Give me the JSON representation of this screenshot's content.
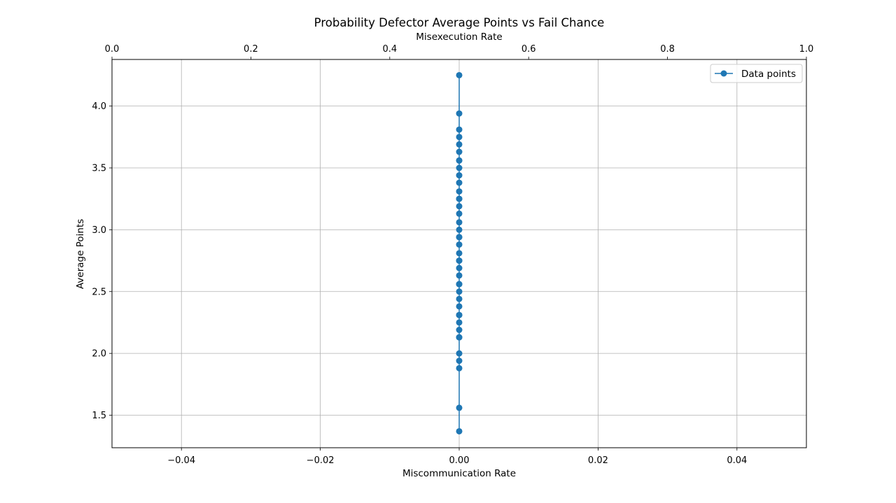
{
  "chart_data": {
    "type": "line",
    "title": "Probability Defector Average Points vs Fail Chance",
    "xlabel": "Miscommunication Rate",
    "ylabel": "Average Points",
    "x2label": "Misexecution Rate",
    "xlim": [
      -0.05,
      0.05
    ],
    "ylim": [
      1.237,
      4.377
    ],
    "x2lim": [
      0.0,
      1.0
    ],
    "xticks": [
      -0.04,
      -0.02,
      0.0,
      0.02,
      0.04
    ],
    "xtick_labels": [
      "−0.04",
      "−0.02",
      "0.00",
      "0.02",
      "0.04"
    ],
    "x2ticks": [
      0.0,
      0.2,
      0.4,
      0.6,
      0.8,
      1.0
    ],
    "x2tick_labels": [
      "0.0",
      "0.2",
      "0.4",
      "0.6",
      "0.8",
      "1.0"
    ],
    "yticks": [
      1.5,
      2.0,
      2.5,
      3.0,
      3.5,
      4.0
    ],
    "ytick_labels": [
      "1.5",
      "2.0",
      "2.5",
      "3.0",
      "3.5",
      "4.0"
    ],
    "grid": true,
    "legend_position": "top-right",
    "series": [
      {
        "name": "Data points",
        "color": "#1f77b4",
        "marker": "circle",
        "x": [
          0,
          0,
          0,
          0,
          0,
          0,
          0,
          0,
          0,
          0,
          0,
          0,
          0,
          0,
          0,
          0,
          0,
          0,
          0,
          0,
          0,
          0,
          0,
          0,
          0,
          0,
          0,
          0,
          0,
          0,
          0,
          0,
          0,
          0,
          0,
          0,
          0,
          0,
          0,
          0,
          0,
          0
        ],
        "y": [
          4.25,
          3.94,
          3.81,
          3.75,
          3.69,
          3.63,
          3.56,
          3.5,
          3.44,
          3.38,
          3.31,
          3.25,
          3.19,
          3.13,
          3.06,
          3.0,
          2.94,
          2.88,
          2.81,
          2.75,
          2.69,
          2.63,
          2.56,
          2.5,
          2.44,
          2.38,
          2.31,
          2.25,
          2.19,
          2.13,
          2.0,
          1.94,
          1.88,
          1.56,
          1.37,
          3.56,
          3.25,
          2.94,
          2.75,
          2.56,
          2.31,
          2.13
        ]
      }
    ]
  }
}
